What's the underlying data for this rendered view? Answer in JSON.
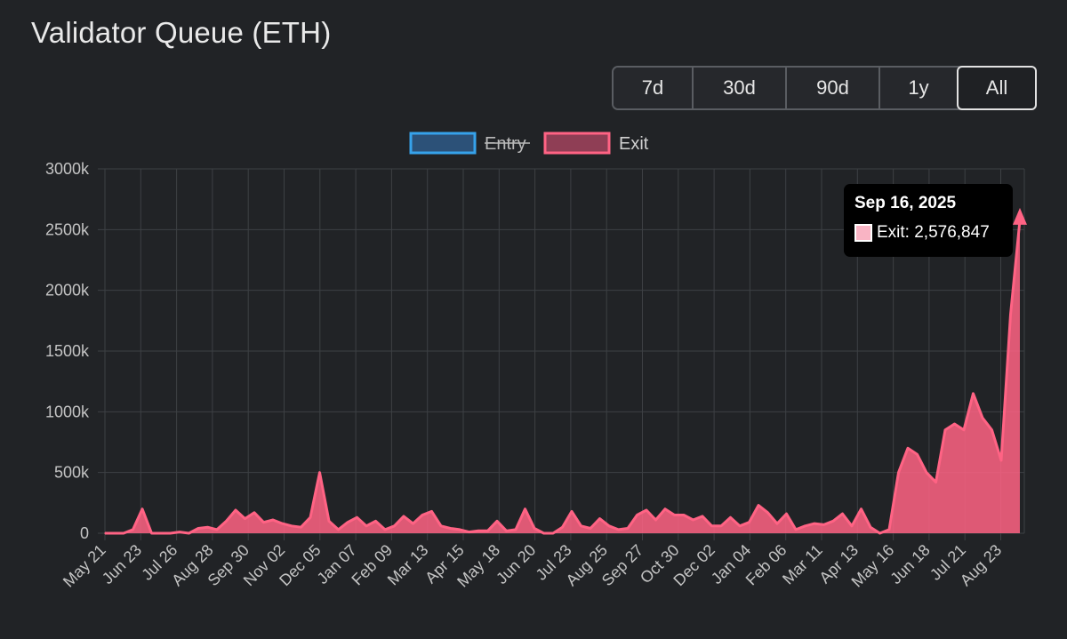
{
  "header": {
    "title": "Validator Queue (ETH)"
  },
  "range_buttons": {
    "items": [
      {
        "label": "7d",
        "active": false
      },
      {
        "label": "30d",
        "active": false
      },
      {
        "label": "90d",
        "active": false
      },
      {
        "label": "1y",
        "active": false
      },
      {
        "label": "All",
        "active": true
      }
    ]
  },
  "tooltip": {
    "title": "Sep 16, 2025",
    "label": "Exit: 2,576,847",
    "color": "#f9b4c4"
  },
  "colors": {
    "background": "#212326",
    "grid": "#3d4044",
    "entry": "#36a2eb",
    "exit": "#ff6384"
  },
  "chart_data": {
    "type": "area",
    "title": "",
    "xlabel": "",
    "ylabel": "",
    "ylim": [
      0,
      3000000
    ],
    "y_tick_labels": [
      "0",
      "500k",
      "1000k",
      "1500k",
      "2000k",
      "2500k",
      "3000k"
    ],
    "x_tick_labels": [
      "May 21",
      "Jun 23",
      "Jul 26",
      "Aug 28",
      "Sep 30",
      "Nov 02",
      "Dec 05",
      "Jan 07",
      "Feb 09",
      "Mar 13",
      "Apr 15",
      "May 18",
      "Jun 20",
      "Jul 23",
      "Aug 25",
      "Sep 27",
      "Oct 30",
      "Dec 02",
      "Jan 04",
      "Feb 06",
      "Mar 11",
      "Apr 13",
      "May 16",
      "Jun 18",
      "Jul 21",
      "Aug 23"
    ],
    "legend": {
      "position": "top",
      "items": [
        {
          "name": "Entry",
          "hidden": true,
          "color": "#36a2eb"
        },
        {
          "name": "Exit",
          "hidden": false,
          "color": "#ff6384"
        }
      ]
    },
    "grid": true,
    "series": [
      {
        "name": "Entry",
        "hidden": true,
        "values": []
      },
      {
        "name": "Exit",
        "hidden": false,
        "x": [
          "May 21",
          "Jun 06",
          "Jun 12",
          "Jun 16",
          "Jun 20",
          "Jun 23",
          "Jul 10",
          "Jul 26",
          "Aug 28",
          "Sep 20",
          "Sep 30",
          "Oct 15",
          "Oct 24",
          "Nov 02",
          "Nov 10",
          "Nov 16",
          "Nov 23",
          "Nov 28",
          "Dec 05",
          "Dec 12",
          "Dec 20",
          "Dec 25",
          "Dec 28",
          "Jan 01",
          "Jan 04",
          "Jan 07",
          "Jan 12",
          "Jan 16",
          "Jan 22",
          "Jan 27",
          "Feb 01",
          "Feb 09",
          "Feb 19",
          "Feb 26",
          "Mar 03",
          "Mar 08",
          "Mar 13",
          "Mar 20",
          "Mar 28",
          "Apr 15",
          "May 01",
          "May 10",
          "May 18",
          "Jun 01",
          "Jun 10",
          "Jun 20",
          "Jul 01",
          "Jul 23",
          "Aug 25",
          "Sep 10",
          "Sep 27",
          "Oct 03",
          "Oct 10",
          "Oct 20",
          "Oct 30",
          "Nov 10",
          "Nov 18",
          "Nov 25",
          "Dec 02",
          "Dec 08",
          "Dec 15",
          "Dec 22",
          "Jan 04",
          "Jan 10",
          "Jan 18",
          "Jan 25",
          "Feb 06",
          "Feb 12",
          "Feb 20",
          "Mar 11",
          "Mar 20",
          "Mar 28",
          "Apr 05",
          "Apr 13",
          "Apr 20",
          "Apr 28",
          "May 16",
          "May 26",
          "Jun 05",
          "Jun 18",
          "Jun 26",
          "Jul 06",
          "Jul 11",
          "Jul 16",
          "Jul 21",
          "Jul 26",
          "Aug 01",
          "Aug 06",
          "Aug 10",
          "Aug 14",
          "Aug 18",
          "Aug 23",
          "Aug 27",
          "Aug 31",
          "Sep 04",
          "Sep 08",
          "Sep 12",
          "Sep 14",
          "Sep 16"
        ],
        "values": [
          0,
          0,
          0,
          30000,
          200000,
          0,
          0,
          0,
          10000,
          0,
          40000,
          50000,
          30000,
          100000,
          190000,
          120000,
          170000,
          90000,
          110000,
          80000,
          60000,
          50000,
          130000,
          500000,
          100000,
          30000,
          90000,
          130000,
          60000,
          100000,
          30000,
          60000,
          140000,
          80000,
          150000,
          180000,
          60000,
          40000,
          30000,
          10000,
          20000,
          20000,
          100000,
          20000,
          30000,
          200000,
          40000,
          0,
          0,
          50000,
          180000,
          60000,
          40000,
          120000,
          60000,
          30000,
          40000,
          150000,
          190000,
          110000,
          200000,
          150000,
          150000,
          110000,
          140000,
          60000,
          60000,
          130000,
          60000,
          90000,
          230000,
          170000,
          80000,
          160000,
          30000,
          60000,
          80000,
          70000,
          100000,
          160000,
          60000,
          200000,
          50000,
          0,
          30000,
          500000,
          700000,
          650000,
          500000,
          420000,
          850000,
          900000,
          850000,
          1150000,
          950000,
          850000,
          600000,
          1800000,
          2576847
        ]
      }
    ]
  }
}
